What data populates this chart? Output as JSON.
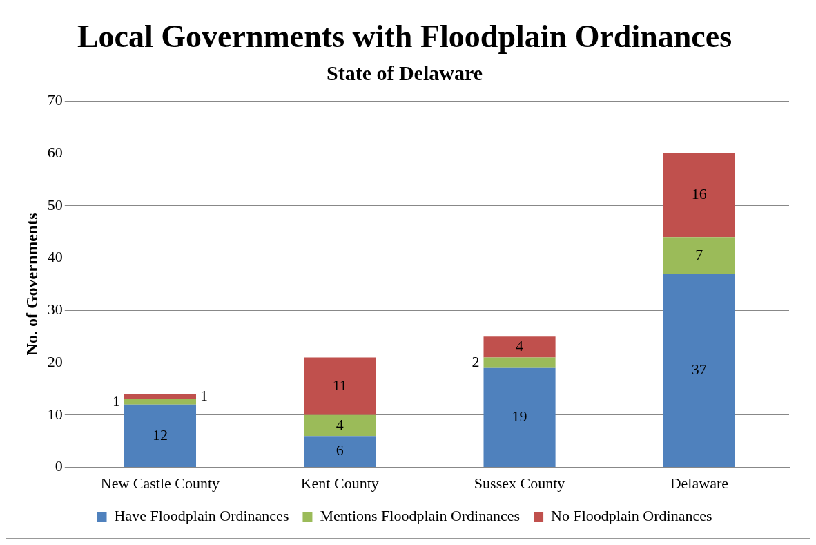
{
  "chart_data": {
    "type": "bar",
    "title": "Local Governments with Floodplain Ordinances",
    "subtitle": "State of Delaware",
    "ylabel": "No. of Governments",
    "categories": [
      "New Castle County",
      "Kent County",
      "Sussex County",
      "Delaware"
    ],
    "series": [
      {
        "name": "Have Floodplain Ordinances",
        "color": "#4f81bd",
        "values": [
          12,
          6,
          19,
          37
        ]
      },
      {
        "name": "Mentions Floodplain Ordinances",
        "color": "#9bbb59",
        "values": [
          1,
          4,
          2,
          7
        ]
      },
      {
        "name": "No Floodplain Ordinances",
        "color": "#c0504d",
        "values": [
          1,
          11,
          4,
          16
        ]
      }
    ],
    "stacked": true,
    "ylim": [
      0,
      70
    ],
    "yticks": [
      0,
      10,
      20,
      30,
      40,
      50,
      60,
      70
    ],
    "grid": "y",
    "legend": "bottom",
    "data_labels": true
  }
}
